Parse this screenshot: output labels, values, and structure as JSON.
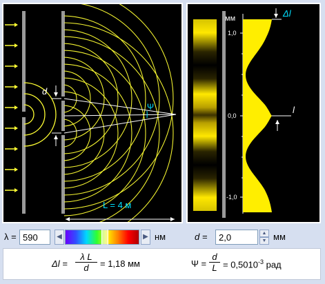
{
  "left": {
    "d_label": "d",
    "psi_label": "Ψ",
    "distance_label": "L = 4 м"
  },
  "right": {
    "unit_label": "мм",
    "delta_label": "Δl",
    "l_label": "l",
    "tick_top": "1,0",
    "tick_mid": "0,0",
    "tick_bot": "-1,0"
  },
  "controls": {
    "lambda_label": "λ =",
    "lambda_value": "590",
    "lambda_unit": "нм",
    "d_label": "d =",
    "d_value": "2,0",
    "d_unit": "мм"
  },
  "formulas": {
    "delta_lhs": "Δl =",
    "delta_num": "λ L",
    "delta_den": "d",
    "delta_result": "= 1,18 мм",
    "psi_lhs": "Ψ =",
    "psi_num": "d",
    "psi_den": "L",
    "psi_result": "= 0,5010",
    "psi_exp": "-3",
    "psi_unit": " рад"
  },
  "colors": {
    "wave": "#ffff33",
    "accent": "#00e0ff",
    "fringe": "#ffee00"
  }
}
